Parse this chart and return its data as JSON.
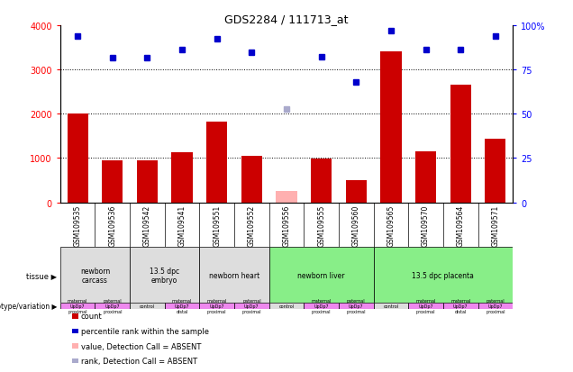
{
  "title": "GDS2284 / 111713_at",
  "samples": [
    "GSM109535",
    "GSM109536",
    "GSM109542",
    "GSM109541",
    "GSM109551",
    "GSM109552",
    "GSM109556",
    "GSM109555",
    "GSM109560",
    "GSM109565",
    "GSM109570",
    "GSM109564",
    "GSM109571"
  ],
  "bar_values": [
    2000,
    950,
    940,
    1130,
    1820,
    1060,
    250,
    990,
    510,
    3400,
    1150,
    2650,
    1430
  ],
  "bar_absent": [
    false,
    false,
    false,
    false,
    false,
    false,
    true,
    false,
    false,
    false,
    false,
    false,
    false
  ],
  "percentile_values": [
    93.75,
    81.75,
    81.75,
    86.25,
    92.5,
    84.5,
    52.5,
    82.25,
    67.75,
    97.0,
    86.25,
    86.25,
    94.0
  ],
  "percentile_absent": [
    false,
    false,
    false,
    false,
    false,
    false,
    true,
    false,
    false,
    false,
    false,
    false,
    false
  ],
  "ylim_left": [
    0,
    4000
  ],
  "ylim_right": [
    0,
    100
  ],
  "yticks_left": [
    0,
    1000,
    2000,
    3000,
    4000
  ],
  "yticks_right": [
    0,
    25,
    50,
    75,
    100
  ],
  "ytick_labels_right": [
    "0",
    "25",
    "50",
    "75",
    "100%"
  ],
  "bar_color": "#cc0000",
  "bar_absent_color": "#ffb0b0",
  "dot_color": "#0000cc",
  "dot_absent_color": "#aaaacc",
  "grid_color": "#000000",
  "tissue_groups": [
    {
      "label": "newborn\ncarcass",
      "start": 0,
      "end": 2,
      "color": "#dddddd"
    },
    {
      "label": "13.5 dpc\nembryo",
      "start": 2,
      "end": 4,
      "color": "#dddddd"
    },
    {
      "label": "newborn heart",
      "start": 4,
      "end": 6,
      "color": "#dddddd"
    },
    {
      "label": "newborn liver",
      "start": 6,
      "end": 9,
      "color": "#88ee88"
    },
    {
      "label": "13.5 dpc placenta",
      "start": 9,
      "end": 13,
      "color": "#88ee88"
    }
  ],
  "genotype_groups": [
    {
      "label": "maternal\nUpDp7\nproximal",
      "start": 0,
      "end": 1,
      "color": "#ee88ee"
    },
    {
      "label": "paternal\nUpDp7\nproximal",
      "start": 1,
      "end": 2,
      "color": "#ee88ee"
    },
    {
      "label": "control",
      "start": 2,
      "end": 3,
      "color": "#dddddd"
    },
    {
      "label": "maternal\nUpDp7\ndistal",
      "start": 3,
      "end": 4,
      "color": "#ee88ee"
    },
    {
      "label": "maternal\nUpDp7\nproximal",
      "start": 4,
      "end": 5,
      "color": "#ee88ee"
    },
    {
      "label": "paternal\nUpDp7\nproximal",
      "start": 5,
      "end": 6,
      "color": "#ee88ee"
    },
    {
      "label": "control",
      "start": 6,
      "end": 7,
      "color": "#dddddd"
    },
    {
      "label": "maternal\nUpDp7\nproximal",
      "start": 7,
      "end": 8,
      "color": "#ee88ee"
    },
    {
      "label": "paternal\nUpDp7\nproximal",
      "start": 8,
      "end": 9,
      "color": "#ee88ee"
    },
    {
      "label": "control",
      "start": 9,
      "end": 10,
      "color": "#dddddd"
    },
    {
      "label": "maternal\nUpDp7\nproximal",
      "start": 10,
      "end": 11,
      "color": "#ee88ee"
    },
    {
      "label": "maternal\nUpDp7\ndistal",
      "start": 11,
      "end": 12,
      "color": "#ee88ee"
    },
    {
      "label": "paternal\nUpDp7\nproximal",
      "start": 12,
      "end": 13,
      "color": "#ee88ee"
    }
  ],
  "bg_color": "#ffffff",
  "legend_items": [
    {
      "label": "count",
      "color": "#cc0000"
    },
    {
      "label": "percentile rank within the sample",
      "color": "#0000cc"
    },
    {
      "label": "value, Detection Call = ABSENT",
      "color": "#ffb0b0"
    },
    {
      "label": "rank, Detection Call = ABSENT",
      "color": "#aaaacc"
    }
  ]
}
